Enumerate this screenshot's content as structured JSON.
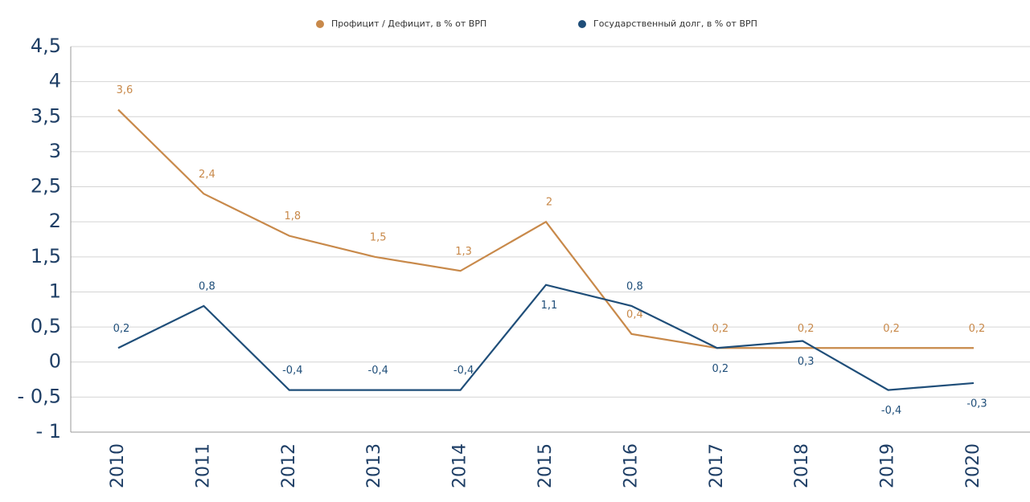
{
  "chart_data": {
    "type": "line",
    "categories": [
      "2010",
      "2011",
      "2012",
      "2013",
      "2014",
      "2015",
      "2016",
      "2017",
      "2018",
      "2019",
      "2020"
    ],
    "series": [
      {
        "name": "Профицит / Дефицит, в % от ВРП",
        "color": "#c8894a",
        "values": [
          3.6,
          2.4,
          1.8,
          1.5,
          1.3,
          2,
          0.4,
          0.2,
          0.2,
          0.2,
          0.2
        ],
        "value_labels": [
          "3,6",
          "2,4",
          "1,8",
          "1,5",
          "1,3",
          "2",
          "0,4",
          "0,2",
          "0,2",
          "0,2",
          "0,2"
        ]
      },
      {
        "name": "Государственный долг, в % от ВРП",
        "color": "#1f4e79",
        "values": [
          0.2,
          0.8,
          -0.4,
          -0.4,
          -0.4,
          1.1,
          0.8,
          0.2,
          0.3,
          -0.4,
          -0.3
        ],
        "value_labels": [
          "0,2",
          "0,8",
          "-0,4",
          "-0,4",
          "-0,4",
          "1,1",
          "0,8",
          "0,2",
          "0,3",
          "-0,4",
          "-0,3"
        ]
      }
    ],
    "ylim": [
      -1,
      4.5
    ],
    "yticks": [
      {
        "value": -1,
        "label": "- 1"
      },
      {
        "value": -0.5,
        "label": "- 0,5"
      },
      0,
      {
        "value": 0.5,
        "label": "0,5"
      },
      1,
      {
        "value": 1.5,
        "label": "1,5"
      },
      2,
      {
        "value": 2.5,
        "label": "2,5"
      },
      3,
      {
        "value": 3.5,
        "label": "3,5"
      },
      4,
      {
        "value": 4.5,
        "label": "4,5"
      }
    ],
    "grid": true
  }
}
